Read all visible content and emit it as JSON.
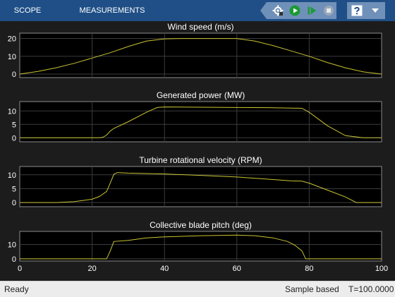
{
  "tabs": [
    {
      "label": "SCOPE"
    },
    {
      "label": "MEASUREMENTS"
    }
  ],
  "toolbar": {
    "icons": [
      "settings-icon",
      "run-icon",
      "step-forward-icon",
      "stop-icon",
      "help-icon",
      "expand-icon"
    ]
  },
  "colors": {
    "toolstrip": "#1f4f86",
    "plot_background": "#000000",
    "signal": "#c8c432",
    "grid": "#3c3c3c",
    "status_bar": "#ececec"
  },
  "status": {
    "left": "Ready",
    "mode": "Sample based",
    "time": "T=100.0000"
  },
  "chart_data": [
    {
      "type": "line",
      "title": "Wind speed (m/s)",
      "xlim": [
        0,
        100
      ],
      "ylim": [
        -2,
        23
      ],
      "yticks": [
        0,
        10,
        20
      ],
      "x": [
        0,
        5,
        10,
        15,
        20,
        25,
        30,
        35,
        40,
        45,
        50,
        55,
        60,
        65,
        70,
        75,
        80,
        85,
        90,
        95,
        100
      ],
      "values": [
        0,
        1.5,
        3.5,
        6,
        9,
        12,
        15.5,
        18.5,
        19.8,
        20,
        20,
        20,
        20,
        18.5,
        16,
        13,
        10,
        6.5,
        3.5,
        1.2,
        0
      ]
    },
    {
      "type": "line",
      "title": "Generated power (MW)",
      "xlim": [
        0,
        100
      ],
      "ylim": [
        -1.5,
        13.5
      ],
      "yticks": [
        0,
        5,
        10
      ],
      "x": [
        0,
        22,
        23,
        24,
        25,
        26,
        30,
        35,
        38,
        40,
        50,
        60,
        70,
        78,
        80,
        85,
        90,
        95,
        100
      ],
      "values": [
        0,
        0,
        0.2,
        1,
        2.5,
        3.5,
        6,
        9.5,
        11.3,
        11.5,
        11.4,
        11.3,
        11.2,
        11,
        9.5,
        4.5,
        0.8,
        0,
        0
      ]
    },
    {
      "type": "line",
      "title": "Turbine rotational velocity (RPM)",
      "xlim": [
        0,
        100
      ],
      "ylim": [
        -1.5,
        13
      ],
      "yticks": [
        0,
        5,
        10
      ],
      "x": [
        0,
        10,
        15,
        20,
        22,
        24,
        25,
        26,
        27,
        30,
        40,
        50,
        60,
        70,
        75,
        78,
        80,
        85,
        90,
        93,
        95,
        100
      ],
      "values": [
        0,
        0,
        0.3,
        1.2,
        2.2,
        4,
        7,
        10.2,
        10.8,
        10.6,
        10.3,
        9.8,
        9.2,
        8.3,
        7.8,
        7.7,
        7,
        4.5,
        2,
        0,
        0,
        0
      ]
    },
    {
      "type": "line",
      "title": "Collective blade pitch (deg)",
      "xlim": [
        0,
        100
      ],
      "ylim": [
        -1.5,
        19
      ],
      "yticks": [
        0,
        10
      ],
      "xticks": [
        0,
        20,
        40,
        60,
        80,
        100
      ],
      "x": [
        0,
        24,
        25,
        26,
        30,
        35,
        40,
        50,
        60,
        65,
        70,
        74,
        76,
        77,
        78,
        79,
        100
      ],
      "values": [
        0,
        0,
        5.5,
        12,
        12.8,
        14.5,
        15.2,
        16,
        16.4,
        16,
        14.5,
        12,
        9.5,
        7.5,
        5.5,
        0,
        0
      ]
    }
  ]
}
